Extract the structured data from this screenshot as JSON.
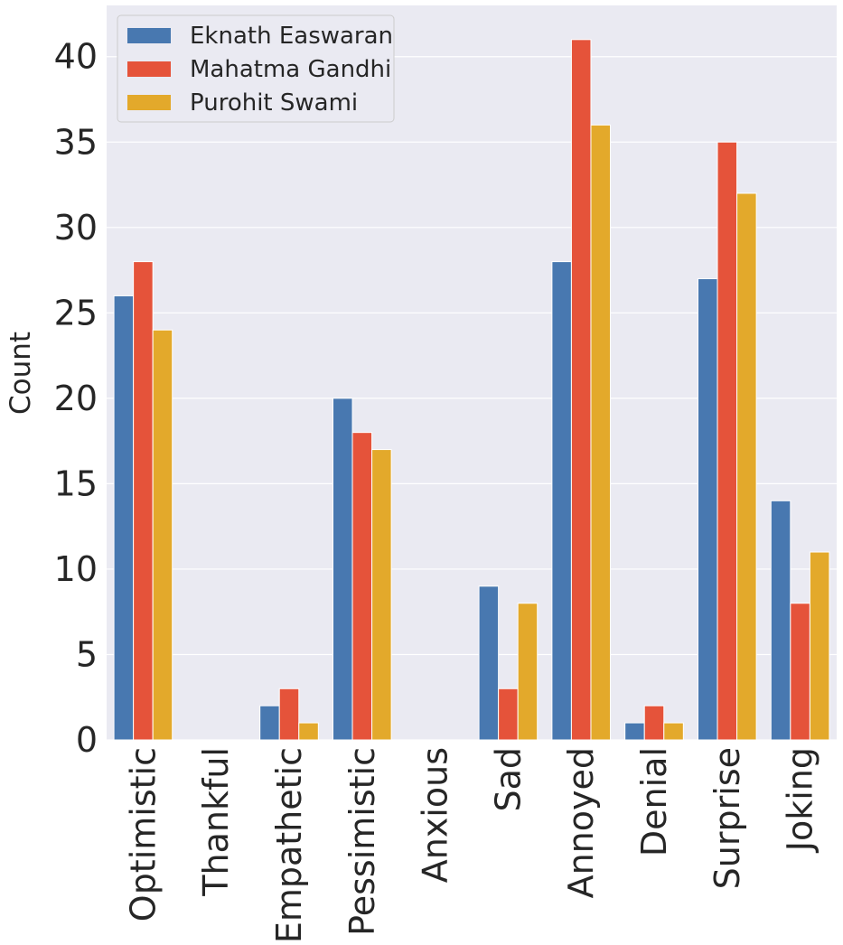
{
  "chart_data": {
    "type": "bar",
    "ylabel": "Count",
    "ylim": [
      0,
      43
    ],
    "yticks": [
      "0",
      "5",
      "10",
      "15",
      "20",
      "25",
      "30",
      "35",
      "40"
    ],
    "grid": true,
    "legend_position": "top-left",
    "categories": [
      "Optimistic",
      "Thankful",
      "Empathetic",
      "Pessimistic",
      "Anxious",
      "Sad",
      "Annoyed",
      "Denial",
      "Surprise",
      "Joking"
    ],
    "series": [
      {
        "name": "Eknath Easwaran",
        "color": "#4878b0",
        "values": [
          26,
          0,
          2,
          20,
          0,
          9,
          28,
          1,
          27,
          14
        ]
      },
      {
        "name": "Mahatma Gandhi",
        "color": "#e5533a",
        "values": [
          28,
          0,
          3,
          18,
          0,
          3,
          41,
          2,
          35,
          8
        ]
      },
      {
        "name": "Purohit Swami",
        "color": "#e3a92b",
        "values": [
          24,
          0,
          1,
          17,
          0,
          8,
          36,
          1,
          32,
          11
        ]
      }
    ]
  }
}
